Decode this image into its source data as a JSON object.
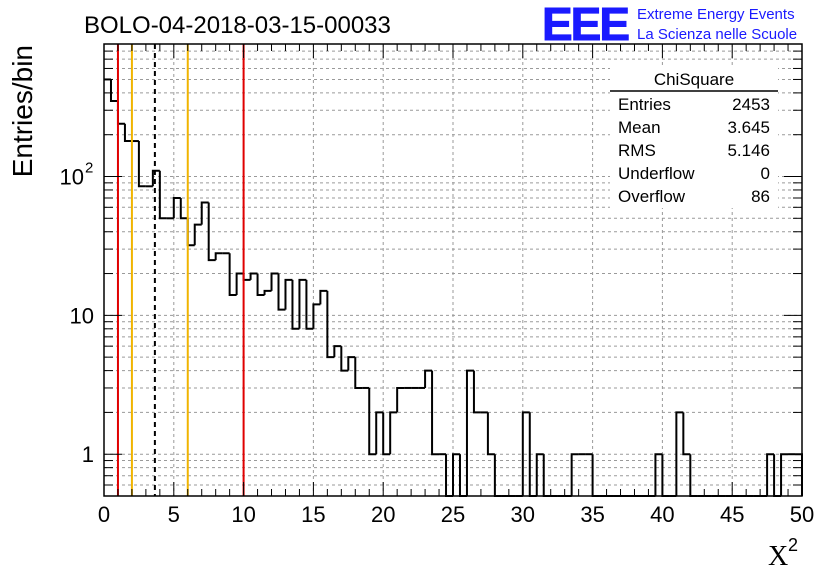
{
  "chart_data": {
    "type": "histogram",
    "title": "BOLO-04-2018-03-15-00033",
    "xlabel": "X",
    "xlabel_superscript": "2",
    "ylabel": "Entries/bin",
    "xlim": [
      0,
      50
    ],
    "ylim": [
      0.5,
      900
    ],
    "y_scale": "log",
    "grid": true,
    "x_ticks": [
      0,
      5,
      10,
      15,
      20,
      25,
      30,
      35,
      40,
      45,
      50
    ],
    "y_ticks": [
      {
        "value": 1,
        "label": "1"
      },
      {
        "value": 10,
        "label": "10"
      },
      {
        "value": 100,
        "label": "10",
        "sup": "2"
      }
    ],
    "bin_width": 0.5,
    "bins": [
      {
        "x": 0.0,
        "y": 500
      },
      {
        "x": 0.5,
        "y": 350
      },
      {
        "x": 1.0,
        "y": 240
      },
      {
        "x": 1.5,
        "y": 180
      },
      {
        "x": 2.0,
        "y": 180
      },
      {
        "x": 2.5,
        "y": 85
      },
      {
        "x": 3.0,
        "y": 85
      },
      {
        "x": 3.5,
        "y": 110
      },
      {
        "x": 4.0,
        "y": 50
      },
      {
        "x": 4.5,
        "y": 50
      },
      {
        "x": 5.0,
        "y": 70
      },
      {
        "x": 5.5,
        "y": 50
      },
      {
        "x": 6.0,
        "y": 32
      },
      {
        "x": 6.5,
        "y": 45
      },
      {
        "x": 7.0,
        "y": 65
      },
      {
        "x": 7.5,
        "y": 25
      },
      {
        "x": 8.0,
        "y": 28
      },
      {
        "x": 8.5,
        "y": 28
      },
      {
        "x": 9.0,
        "y": 14
      },
      {
        "x": 9.5,
        "y": 20
      },
      {
        "x": 10.0,
        "y": 18
      },
      {
        "x": 10.5,
        "y": 20
      },
      {
        "x": 11.0,
        "y": 14
      },
      {
        "x": 11.5,
        "y": 15
      },
      {
        "x": 12.0,
        "y": 20
      },
      {
        "x": 12.5,
        "y": 11
      },
      {
        "x": 13.0,
        "y": 18
      },
      {
        "x": 13.5,
        "y": 8
      },
      {
        "x": 14.0,
        "y": 18
      },
      {
        "x": 14.5,
        "y": 8
      },
      {
        "x": 15.0,
        "y": 12
      },
      {
        "x": 15.5,
        "y": 15
      },
      {
        "x": 16.0,
        "y": 5
      },
      {
        "x": 16.5,
        "y": 6
      },
      {
        "x": 17.0,
        "y": 4
      },
      {
        "x": 17.5,
        "y": 5
      },
      {
        "x": 18.0,
        "y": 3
      },
      {
        "x": 18.5,
        "y": 3
      },
      {
        "x": 19.0,
        "y": 1
      },
      {
        "x": 19.5,
        "y": 2
      },
      {
        "x": 20.0,
        "y": 1
      },
      {
        "x": 20.5,
        "y": 2
      },
      {
        "x": 21.0,
        "y": 3
      },
      {
        "x": 21.5,
        "y": 3
      },
      {
        "x": 22.0,
        "y": 3
      },
      {
        "x": 22.5,
        "y": 3
      },
      {
        "x": 23.0,
        "y": 4
      },
      {
        "x": 23.5,
        "y": 1
      },
      {
        "x": 24.0,
        "y": 1
      },
      {
        "x": 24.5,
        "y": 0
      },
      {
        "x": 25.0,
        "y": 1
      },
      {
        "x": 25.5,
        "y": 0
      },
      {
        "x": 26.0,
        "y": 4
      },
      {
        "x": 26.5,
        "y": 2
      },
      {
        "x": 27.0,
        "y": 2
      },
      {
        "x": 27.5,
        "y": 1
      },
      {
        "x": 28.0,
        "y": 0
      },
      {
        "x": 28.5,
        "y": 0
      },
      {
        "x": 29.0,
        "y": 0
      },
      {
        "x": 29.5,
        "y": 0
      },
      {
        "x": 30.0,
        "y": 2
      },
      {
        "x": 30.5,
        "y": 0
      },
      {
        "x": 31.0,
        "y": 1
      },
      {
        "x": 31.5,
        "y": 0
      },
      {
        "x": 32.0,
        "y": 0
      },
      {
        "x": 32.5,
        "y": 0
      },
      {
        "x": 33.0,
        "y": 0
      },
      {
        "x": 33.5,
        "y": 1
      },
      {
        "x": 34.0,
        "y": 1
      },
      {
        "x": 34.5,
        "y": 1
      },
      {
        "x": 35.0,
        "y": 0
      },
      {
        "x": 35.5,
        "y": 0
      },
      {
        "x": 36.0,
        "y": 0
      },
      {
        "x": 36.5,
        "y": 0
      },
      {
        "x": 37.0,
        "y": 0
      },
      {
        "x": 37.5,
        "y": 0
      },
      {
        "x": 38.0,
        "y": 0
      },
      {
        "x": 38.5,
        "y": 0
      },
      {
        "x": 39.0,
        "y": 0
      },
      {
        "x": 39.5,
        "y": 1
      },
      {
        "x": 40.0,
        "y": 0
      },
      {
        "x": 40.5,
        "y": 0
      },
      {
        "x": 41.0,
        "y": 2
      },
      {
        "x": 41.5,
        "y": 1
      },
      {
        "x": 42.0,
        "y": 0
      },
      {
        "x": 42.5,
        "y": 0
      },
      {
        "x": 43.0,
        "y": 0
      },
      {
        "x": 43.5,
        "y": 0
      },
      {
        "x": 44.0,
        "y": 0
      },
      {
        "x": 44.5,
        "y": 0
      },
      {
        "x": 45.0,
        "y": 0
      },
      {
        "x": 45.5,
        "y": 0
      },
      {
        "x": 46.0,
        "y": 0
      },
      {
        "x": 46.5,
        "y": 0
      },
      {
        "x": 47.0,
        "y": 0
      },
      {
        "x": 47.5,
        "y": 1
      },
      {
        "x": 48.0,
        "y": 0
      },
      {
        "x": 48.5,
        "y": 1
      },
      {
        "x": 49.0,
        "y": 1
      },
      {
        "x": 49.5,
        "y": 1
      }
    ],
    "vertical_lines": [
      {
        "x": 1.0,
        "color": "#e00000",
        "style": "solid"
      },
      {
        "x": 2.0,
        "color": "#f0b400",
        "style": "solid"
      },
      {
        "x": 3.645,
        "color": "#000000",
        "style": "dashed"
      },
      {
        "x": 6.0,
        "color": "#f0b400",
        "style": "solid"
      },
      {
        "x": 10.0,
        "color": "#e00000",
        "style": "solid"
      }
    ],
    "stats_box": {
      "title": "ChiSquare",
      "rows": [
        {
          "label": "Entries",
          "value": "2453"
        },
        {
          "label": "Mean",
          "value": "3.645"
        },
        {
          "label": "RMS",
          "value": "5.146"
        },
        {
          "label": "Underflow",
          "value": "0"
        },
        {
          "label": "Overflow",
          "value": "86"
        }
      ]
    }
  },
  "logo": {
    "text": "EEE",
    "line1": "Extreme Energy Events",
    "line2": "La Scienza nelle Scuole",
    "color": "#1a1aff"
  }
}
